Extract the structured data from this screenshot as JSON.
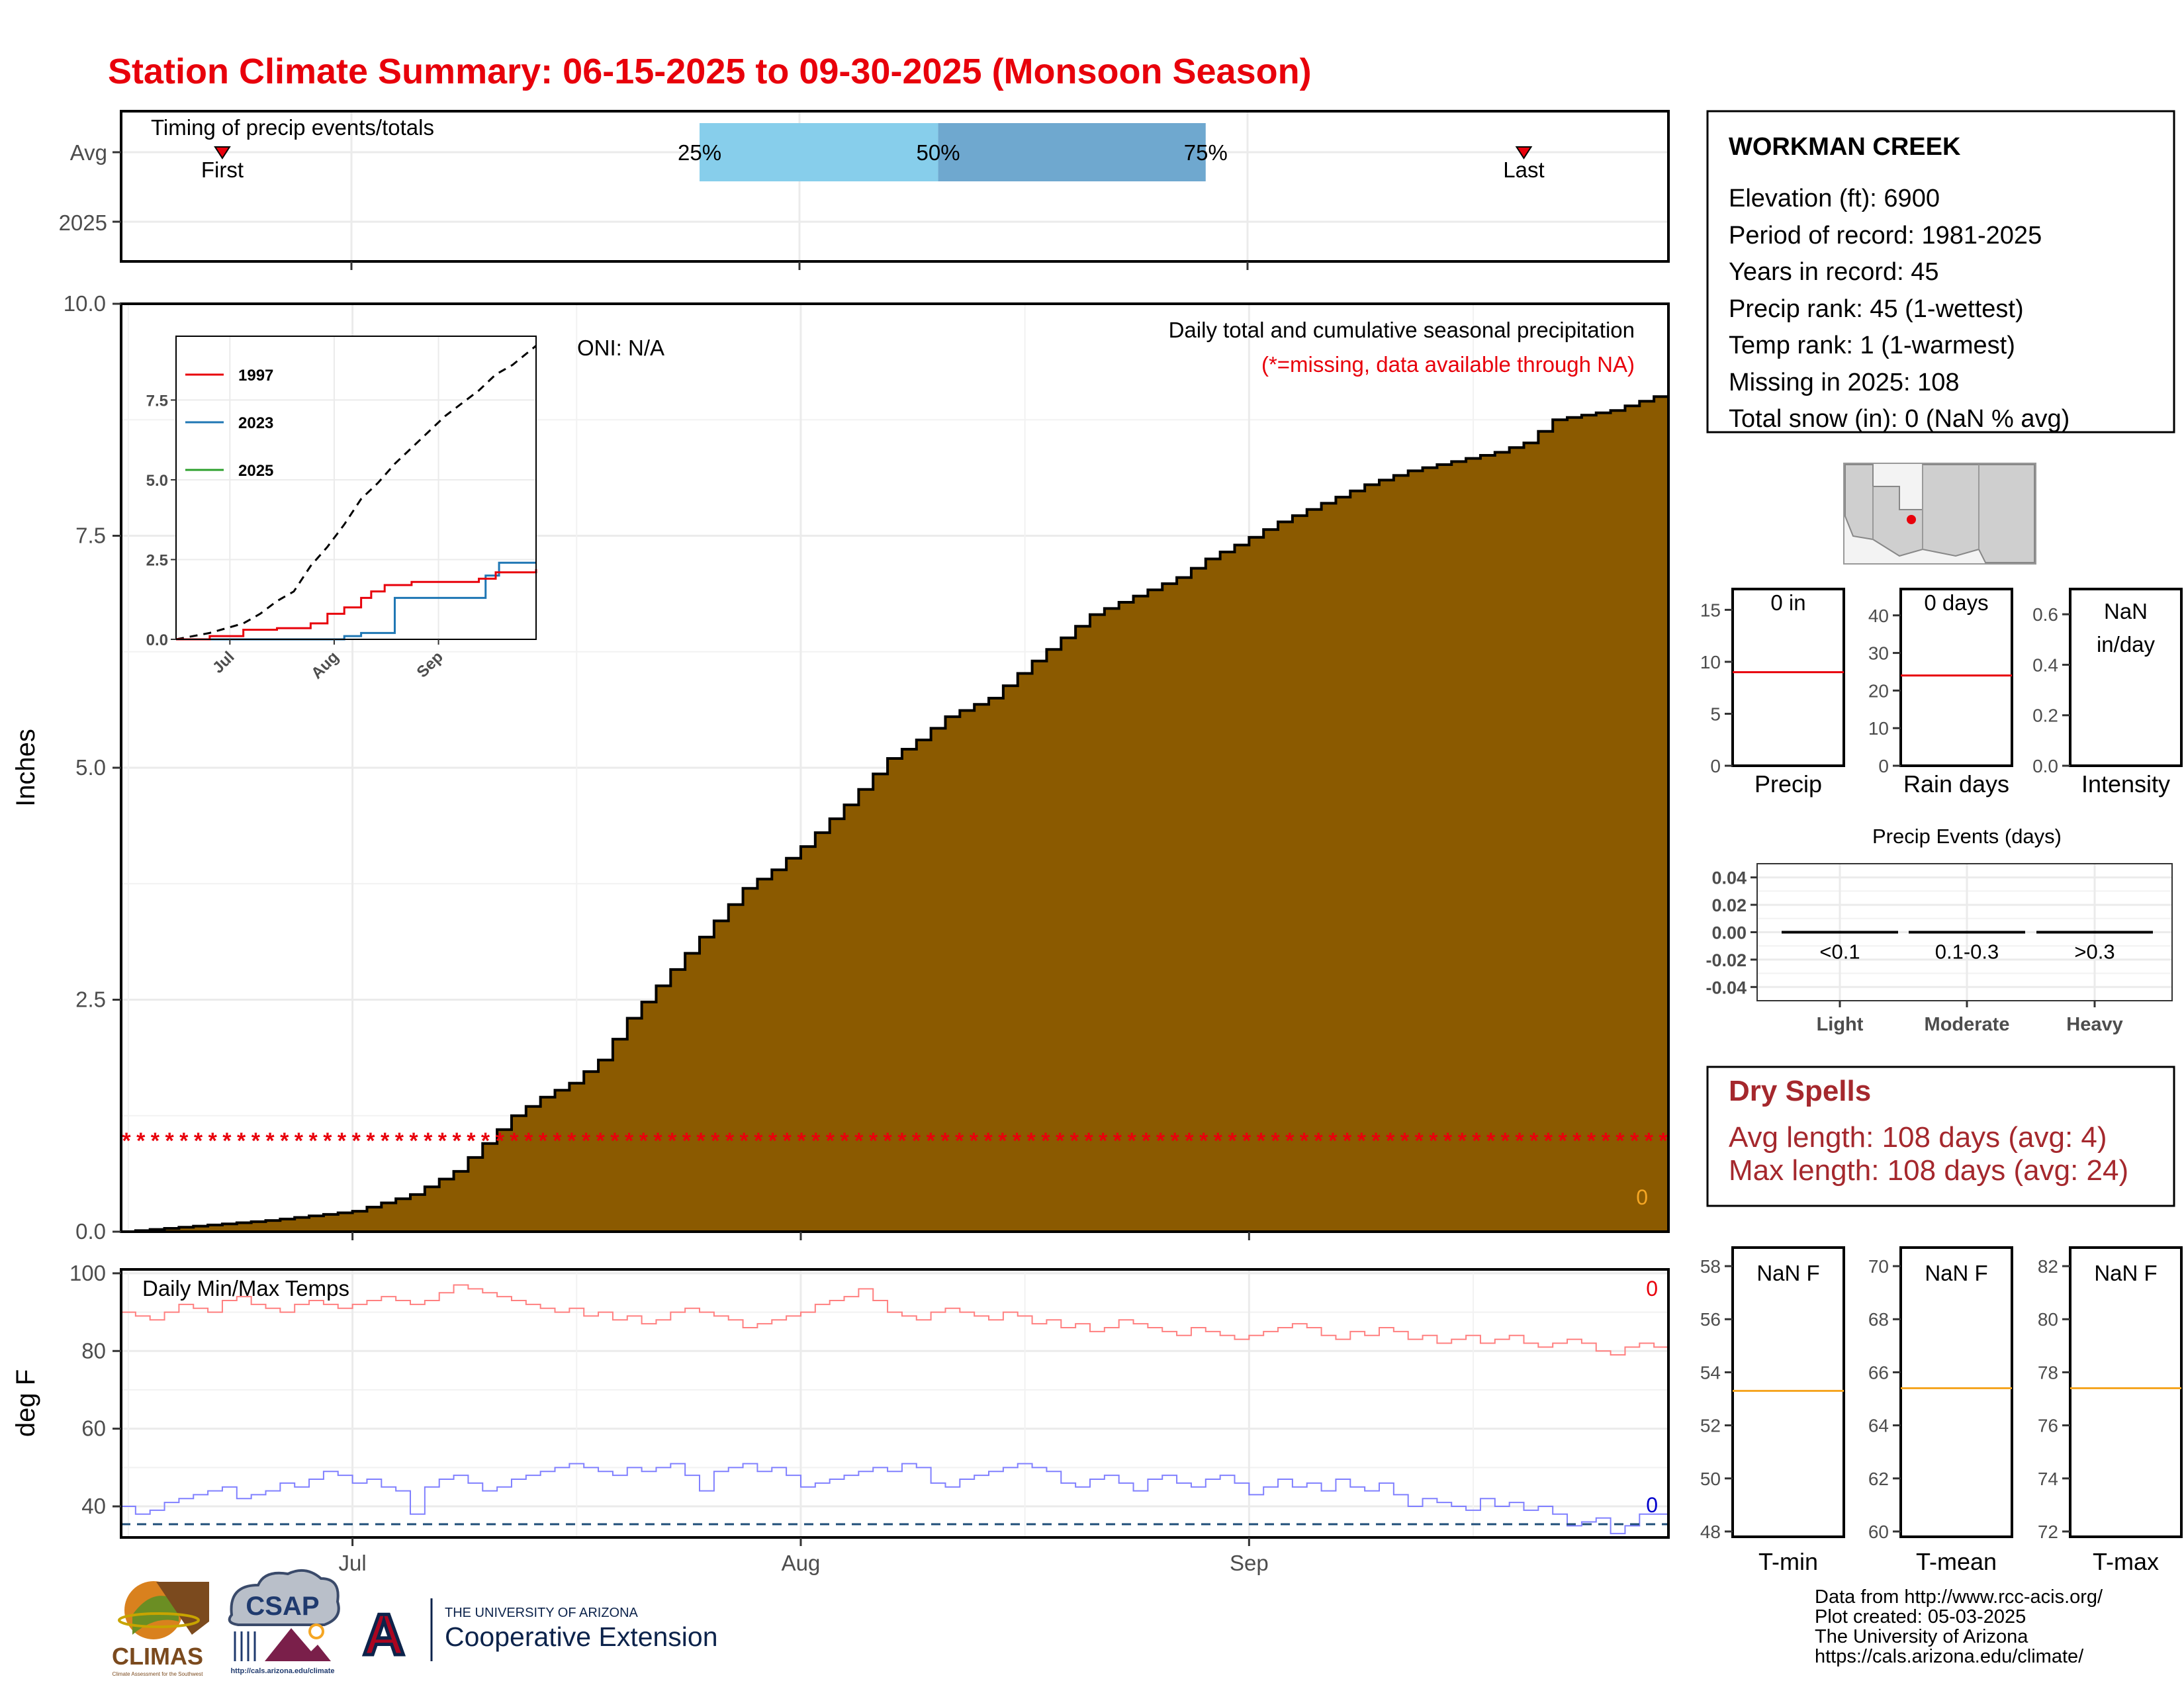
{
  "title": "Station Climate Summary: 06-15-2025 to 09-30-2025 (Monsoon Season)",
  "colors": {
    "title": "#e8000b",
    "precip_fill": "#8b5a00",
    "missing": "#e8000b",
    "tmax": "#ff8080",
    "tmin": "#8080ff",
    "avg_band_light": "#87ceeb",
    "avg_band_dark": "#6fa8cf",
    "avg_line": "#e8000b",
    "temp_avg_line": "#f5a623",
    "dryspell": "#a5282d",
    "dashed_freeze": "#1f4e79"
  },
  "timing": {
    "label": "Timing of precip events/totals",
    "rows": [
      "Avg",
      "2025"
    ],
    "first_label": "First",
    "last_label": "Last",
    "first_day": 7,
    "last_day": 97,
    "p25_label": "25%",
    "p50_label": "50%",
    "p75_label": "75%",
    "p25_day": 40,
    "p50_day": 56.5,
    "p75_day": 75
  },
  "main": {
    "ylabel": "Inches",
    "y_ticks": [
      "0.0",
      "2.5",
      "5.0",
      "7.5",
      "10.0"
    ],
    "oni": "ONI: N/A",
    "subtitle": "Daily total and cumulative seasonal precipitation",
    "missing_note": "(*=missing, data available through NA)",
    "zero_label": "0",
    "missing_symbol": "*"
  },
  "chart_data": {
    "type": "area",
    "title": "Daily total and cumulative seasonal precipitation",
    "ylabel": "Inches",
    "ylim": [
      0,
      10
    ],
    "x_start": "2025-06-15",
    "x_end": "2025-09-30",
    "x_ticks": [
      "Jul",
      "Aug",
      "Sep"
    ],
    "avg_cumulative_anchor_days": [
      0,
      10,
      16,
      20,
      23,
      25,
      27,
      29,
      31,
      33,
      35,
      37,
      39,
      41,
      43,
      45,
      47,
      50,
      53,
      55,
      57,
      60,
      63,
      65,
      67,
      70,
      73,
      75,
      77,
      80,
      83,
      86,
      89,
      92,
      95,
      97,
      99,
      101,
      103,
      105,
      107
    ],
    "avg_cumulative_anchor_values": [
      0,
      0.12,
      0.22,
      0.4,
      0.65,
      0.95,
      1.25,
      1.45,
      1.6,
      1.85,
      2.3,
      2.65,
      3.0,
      3.35,
      3.7,
      3.9,
      4.15,
      4.6,
      5.1,
      5.3,
      5.55,
      5.75,
      6.15,
      6.4,
      6.65,
      6.85,
      7.05,
      7.25,
      7.4,
      7.65,
      7.85,
      8.05,
      8.2,
      8.3,
      8.4,
      8.5,
      8.75,
      8.8,
      8.85,
      8.95,
      9.05
    ],
    "missing_level": 1.0,
    "missing_days": 108
  },
  "inset": {
    "y_ticks": [
      "0.0",
      "2.5",
      "5.0",
      "7.5"
    ],
    "x_ticks": [
      "Jul",
      "Aug",
      "Sep"
    ],
    "legend": [
      {
        "name": "1997",
        "color": "#e8000b"
      },
      {
        "name": "2023",
        "color": "#1f77b4"
      },
      {
        "name": "2025",
        "color": "#2ca02c"
      }
    ],
    "avg_days": [
      0,
      10,
      20,
      25,
      30,
      35,
      40,
      45,
      50,
      55,
      60,
      65,
      70,
      75,
      80,
      85,
      90,
      95,
      100,
      107
    ],
    "avg_values": [
      0,
      0.2,
      0.5,
      0.8,
      1.2,
      1.5,
      2.3,
      2.9,
      3.6,
      4.4,
      4.9,
      5.5,
      6.0,
      6.5,
      7.0,
      7.4,
      7.8,
      8.3,
      8.6,
      9.2
    ],
    "series_1997_days": [
      0,
      10,
      20,
      30,
      40,
      45,
      50,
      55,
      58,
      62,
      70,
      75,
      80,
      85,
      90,
      95,
      100,
      107
    ],
    "series_1997_values": [
      0,
      0.1,
      0.3,
      0.35,
      0.5,
      0.8,
      1.0,
      1.3,
      1.5,
      1.7,
      1.8,
      1.8,
      1.8,
      1.8,
      1.9,
      2.1,
      2.1,
      2.2
    ],
    "series_2023_days": [
      0,
      40,
      45,
      50,
      55,
      60,
      65,
      70,
      75,
      80,
      85,
      90,
      92,
      96,
      100,
      107
    ],
    "series_2023_values": [
      0,
      0,
      0.0,
      0.1,
      0.2,
      0.2,
      1.3,
      1.3,
      1.3,
      1.3,
      1.3,
      1.3,
      2.0,
      2.4,
      2.4,
      2.4
    ],
    "ylim": [
      0,
      9.5
    ]
  },
  "temps": {
    "ylabel": "deg F",
    "label": "Daily Min/Max Temps",
    "y_ticks": [
      "40",
      "60",
      "80",
      "100"
    ],
    "x_ticks": [
      "Jul",
      "Aug",
      "Sep"
    ],
    "ylim": [
      32,
      101
    ],
    "freeze": 32,
    "zero_top": "0",
    "zero_bottom": "0",
    "tmax_values": [
      90,
      89,
      88,
      90,
      92,
      91,
      90,
      93,
      94,
      92,
      91,
      90,
      92,
      93,
      92,
      91,
      92,
      93,
      94,
      93,
      92,
      93,
      95,
      97,
      96,
      95,
      94,
      93,
      92,
      91,
      90,
      91,
      89,
      90,
      88,
      89,
      87,
      88,
      90,
      91,
      90,
      89,
      88,
      86,
      87,
      88,
      89,
      90,
      92,
      93,
      94,
      96,
      93,
      90,
      89,
      88,
      90,
      91,
      90,
      89,
      88,
      90,
      89,
      87,
      88,
      86,
      87,
      85,
      86,
      88,
      87,
      86,
      85,
      84,
      86,
      85,
      84,
      83,
      84,
      85,
      86,
      87,
      86,
      84,
      83,
      85,
      84,
      86,
      85,
      83,
      84,
      82,
      83,
      84,
      82,
      83,
      84,
      82,
      81,
      82,
      83,
      82,
      80,
      79,
      81,
      82,
      81
    ],
    "tmin_values": [
      40,
      38,
      39,
      41,
      42,
      43,
      44,
      45,
      42,
      43,
      44,
      46,
      45,
      47,
      49,
      48,
      46,
      47,
      45,
      44,
      38,
      45,
      47,
      48,
      46,
      44,
      45,
      47,
      48,
      49,
      50,
      51,
      50,
      49,
      48,
      50,
      49,
      50,
      51,
      48,
      44,
      49,
      50,
      51,
      49,
      50,
      48,
      45,
      46,
      47,
      48,
      49,
      50,
      49,
      51,
      50,
      46,
      45,
      47,
      48,
      49,
      50,
      51,
      50,
      49,
      46,
      45,
      47,
      48,
      46,
      44,
      47,
      48,
      46,
      45,
      47,
      48,
      46,
      43,
      45,
      47,
      45,
      46,
      44,
      47,
      45,
      44,
      46,
      43,
      40,
      42,
      41,
      40,
      39,
      42,
      40,
      41,
      39,
      40,
      38,
      35,
      36,
      37,
      33,
      35,
      38,
      38
    ]
  },
  "station": {
    "name": "WORKMAN CREEK",
    "lines": [
      "Elevation (ft): 6900",
      "Period of record: 1981-2025",
      "Years in record: 45",
      "Precip rank: 45 (1-wettest)",
      "Temp rank: 1 (1-warmest)",
      "Missing in 2025: 108",
      "Total snow (in): 0 (NaN % avg)"
    ]
  },
  "mini_precip": {
    "label": "Precip",
    "value_text": "0 in",
    "y_ticks": [
      "0",
      "5",
      "10",
      "15"
    ],
    "ymax": 17,
    "avg": 9
  },
  "mini_raindays": {
    "label": "Rain days",
    "value_text": "0 days",
    "y_ticks": [
      "0",
      "10",
      "20",
      "30",
      "40"
    ],
    "ymax": 47,
    "avg": 24
  },
  "mini_intensity": {
    "label": "Intensity",
    "value_text_1": "NaN",
    "value_text_2": "in/day",
    "y_ticks": [
      "0.0",
      "0.2",
      "0.4",
      "0.6"
    ],
    "ymax": 0.7
  },
  "events": {
    "title": "Precip Events (days)",
    "y_ticks": [
      "0.04",
      "0.02",
      "0.00",
      "-0.02",
      "-0.04"
    ],
    "ranges": [
      "<0.1",
      "0.1-0.3",
      ">0.3"
    ],
    "categories": [
      "Light",
      "Moderate",
      "Heavy"
    ]
  },
  "dryspells": {
    "title": "Dry Spells",
    "avg_line": "Avg length: 108 days (avg: 4)",
    "max_line": "Max length: 108 days (avg: 24)"
  },
  "temp_boxes": [
    {
      "label": "T-min",
      "value_text": "NaN F",
      "y_ticks": [
        "48",
        "50",
        "52",
        "54",
        "56",
        "58"
      ],
      "ymin": 47.8,
      "ymax": 58.7,
      "avg": 53.3
    },
    {
      "label": "T-mean",
      "value_text": "NaN F",
      "y_ticks": [
        "60",
        "62",
        "64",
        "66",
        "68",
        "70"
      ],
      "ymin": 59.8,
      "ymax": 70.7,
      "avg": 65.4
    },
    {
      "label": "T-max",
      "value_text": "NaN F",
      "y_ticks": [
        "72",
        "74",
        "76",
        "78",
        "80",
        "82"
      ],
      "ymin": 71.8,
      "ymax": 82.7,
      "avg": 77.4
    }
  ],
  "footer": {
    "lines": [
      "Data from http://www.rcc-acis.org/",
      "Plot created: 05-03-2025",
      "The University of Arizona",
      "https://cals.arizona.edu/climate/"
    ]
  },
  "logos": {
    "climas_text": "CLIMAS",
    "climas_sub": "Climate Assessment for the Southwest",
    "csap_text": "CSAP",
    "csap_sub": "http://cals.arizona.edu/climate",
    "ua_letter": "A",
    "ua_line1": "THE UNIVERSITY OF ARIZONA",
    "ua_line2": "Cooperative Extension"
  }
}
